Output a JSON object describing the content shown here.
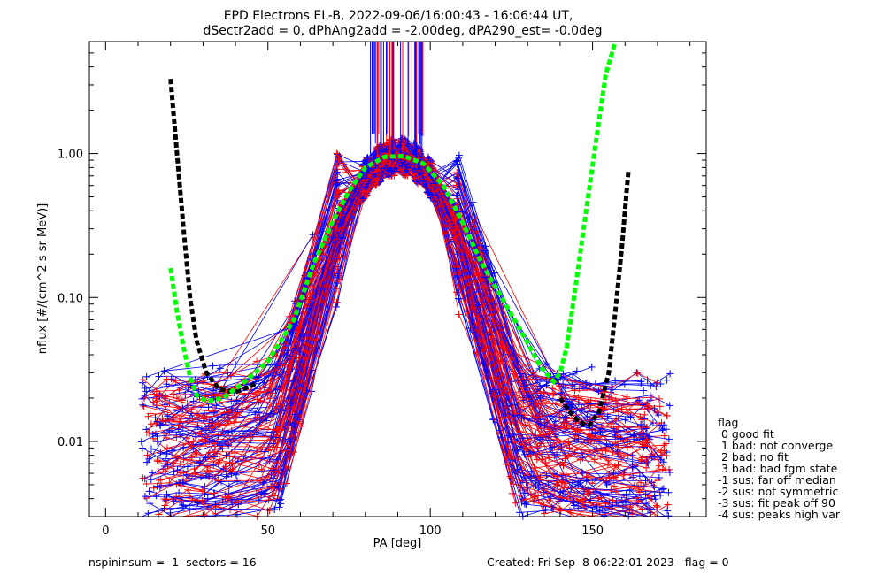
{
  "chart_data": {
    "type": "line",
    "title": "EPD Electrons EL-B, 2022-09-06/16:00:43 - 16:06:44 UT,",
    "subtitle": "dSectr2add = 0, dPhAng2add = -2.00deg, dPA290_est=  -0.0deg",
    "xlabel": "PA [deg]",
    "ylabel": "nflux [#/(cm^2 s sr MeV)]",
    "xlim": [
      -5,
      185
    ],
    "ylim": [
      0.003,
      6.0
    ],
    "yscale": "log",
    "x_ticks": [
      {
        "v": 0,
        "label": "0"
      },
      {
        "v": 50,
        "label": "50"
      },
      {
        "v": 100,
        "label": "100"
      },
      {
        "v": 150,
        "label": "150"
      }
    ],
    "y_ticks": [
      {
        "v": 0.01,
        "label": "0.01"
      },
      {
        "v": 0.1,
        "label": "0.10"
      },
      {
        "v": 1,
        "label": "1.00"
      }
    ],
    "curves": [
      {
        "name": "black-fit-left",
        "color": "#000000",
        "x": [
          20,
          22,
          24,
          26,
          28,
          31,
          35,
          40,
          46
        ],
        "y": [
          3.3,
          1.0,
          0.3,
          0.1,
          0.05,
          0.03,
          0.023,
          0.022,
          0.025
        ]
      },
      {
        "name": "black-fit-right",
        "color": "#000000",
        "x": [
          140,
          143,
          146,
          149,
          152,
          155,
          157,
          159,
          161
        ],
        "y": [
          0.02,
          0.016,
          0.0135,
          0.013,
          0.016,
          0.03,
          0.08,
          0.22,
          0.75
        ]
      },
      {
        "name": "green-fit",
        "color": "#00ff00",
        "x": [
          20,
          22,
          24,
          26,
          28,
          31,
          36,
          42,
          50,
          58,
          64,
          70,
          75,
          80,
          86,
          92,
          98,
          104,
          110,
          116,
          122,
          128,
          134,
          138,
          140,
          142,
          145,
          148,
          151,
          154,
          157
        ],
        "y": [
          0.16,
          0.08,
          0.045,
          0.028,
          0.021,
          0.019,
          0.02,
          0.025,
          0.036,
          0.07,
          0.17,
          0.34,
          0.55,
          0.8,
          0.95,
          0.96,
          0.85,
          0.6,
          0.33,
          0.17,
          0.1,
          0.058,
          0.033,
          0.026,
          0.03,
          0.045,
          0.13,
          0.4,
          1.2,
          3.5,
          6.0
        ]
      }
    ],
    "series": [
      {
        "name": "red-traces",
        "color": "#ff0000"
      },
      {
        "name": "blue-traces",
        "color": "#0000ff"
      }
    ],
    "legend": {
      "position": "right",
      "title": "flag",
      "entries": [
        " 0 good fit",
        " 1 bad: not converge",
        " 2 bad: no fit",
        " 3 bad: bad fgm state",
        "-1 sus: far off median",
        "-2 sus: not symmetric",
        "-3 sus: fit peak off 90",
        "-4 sus: peaks high var"
      ]
    },
    "grid": false
  },
  "footer": {
    "left": "nspininsum =  1  sectors = 16",
    "right": "Created: Fri Sep  8 06:22:01 2023   flag = 0"
  }
}
